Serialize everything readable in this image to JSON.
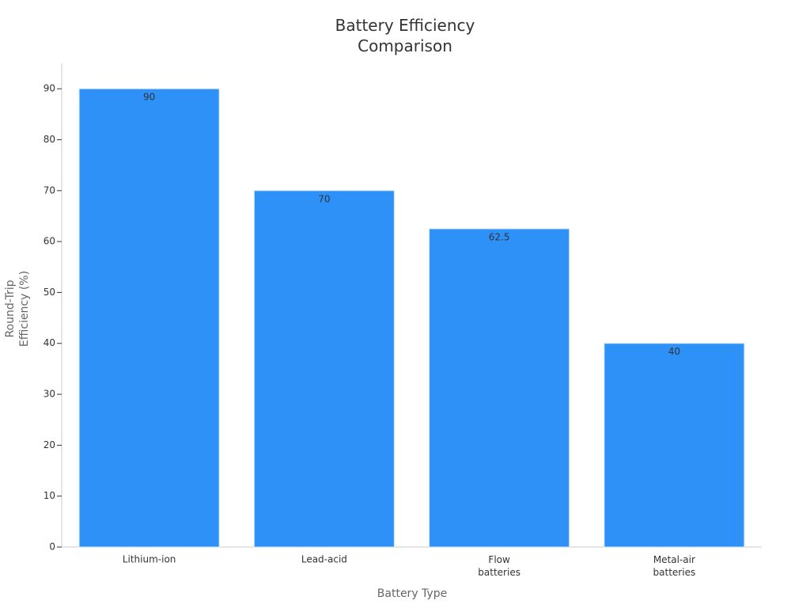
{
  "chart_data": {
    "type": "bar",
    "title": "Battery Efficiency\nComparison",
    "x_label": "Battery Type",
    "y_label": "Round-Trip\nEfficiency (%)",
    "categories": [
      "Lithium-ion",
      "Lead-acid",
      "Flow\nbatteries",
      "Metal-air\nbatteries"
    ],
    "values": [
      90,
      70,
      62.5,
      40
    ],
    "color": "#2e91f8",
    "ylim": [
      0,
      95
    ],
    "yticks": [
      0,
      10,
      20,
      30,
      40,
      50,
      60,
      70,
      80,
      90
    ],
    "grid": false
  }
}
